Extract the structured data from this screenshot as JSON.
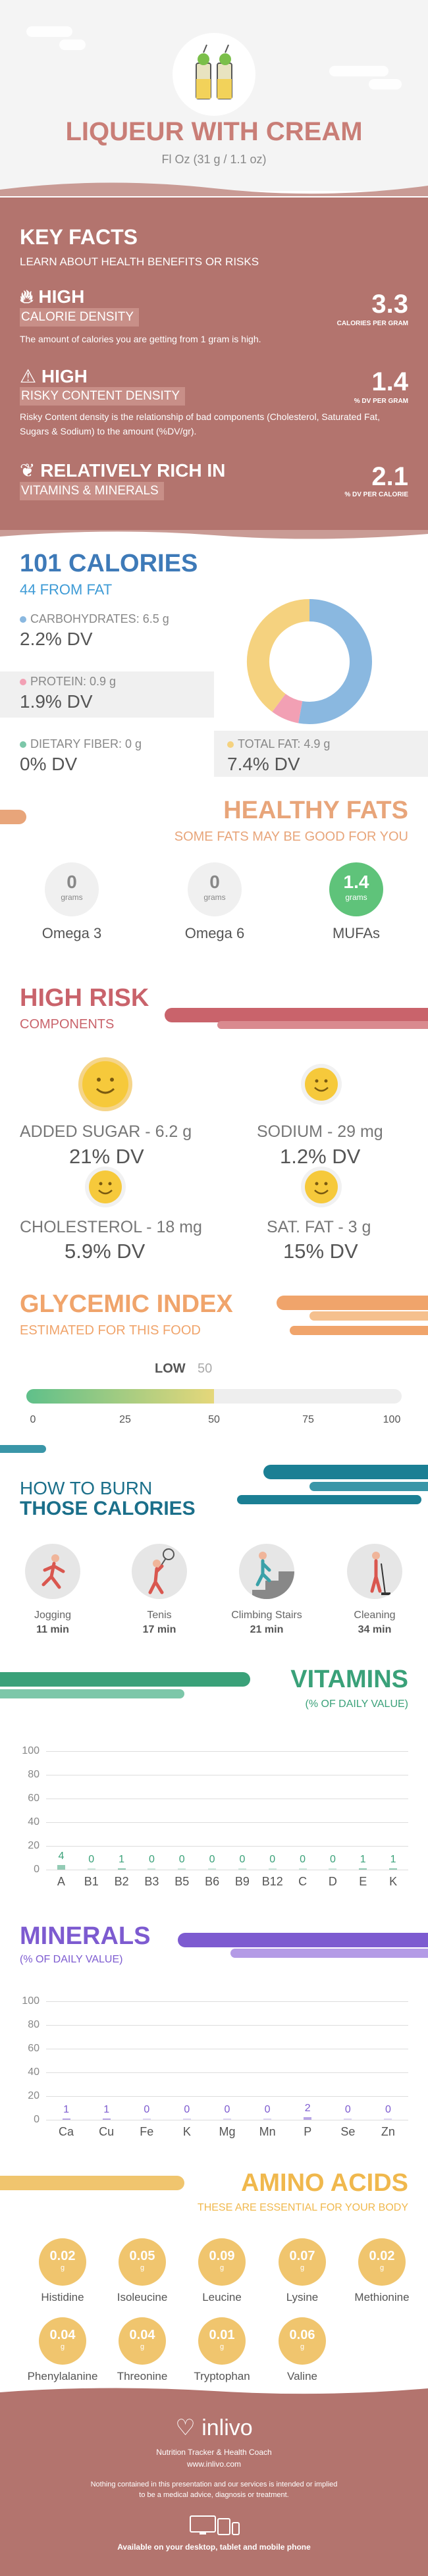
{
  "header": {
    "title": "LIQUEUR WITH CREAM",
    "subtitle": "Fl Oz (31 g / 1.1 oz)"
  },
  "key_facts": {
    "title": "KEY FACTS",
    "subtitle": "LEARN ABOUT HEALTH BENEFITS OR RISKS",
    "facts": [
      {
        "level": "HIGH",
        "label": "CALORIE DENSITY",
        "desc": "The amount of calories you are getting from 1 gram is high.",
        "value": "3.3",
        "unit": "CALORIES PER GRAM"
      },
      {
        "level": "HIGH",
        "label": "RISKY CONTENT DENSITY",
        "desc": "Risky Content density is the relationship of bad components (Cholesterol, Saturated Fat, Sugars & Sodium) to the amount (%DV/gr).",
        "value": "1.4",
        "unit": "% DV PER GRAM"
      },
      {
        "level": "RELATIVELY RICH IN",
        "label": "VITAMINS & MINERALS",
        "desc": "",
        "value": "2.1",
        "unit": "% DV PER CALORIE"
      }
    ]
  },
  "calories": {
    "title": "101 CALORIES",
    "subtitle": "44 FROM FAT",
    "macros": [
      {
        "label": "CARBOHYDRATES: 6.5 g",
        "dv": "2.2% DV",
        "color": "#8ab8e0"
      },
      {
        "label": "PROTEIN: 0.9 g",
        "dv": "1.9% DV",
        "color": "#f2a0b4"
      },
      {
        "label": "DIETARY FIBER: 0 g",
        "dv": "0% DV",
        "color": "#7cc7a9"
      },
      {
        "label": "TOTAL FAT: 4.9 g",
        "dv": "7.4% DV",
        "color": "#f5d27f"
      }
    ],
    "donut": [
      {
        "name": "CARBOHYDRATES",
        "value": 6.5,
        "color": "#8ab8e0"
      },
      {
        "name": "PROTEIN",
        "value": 0.9,
        "color": "#f2a0b4"
      },
      {
        "name": "TOTAL FAT",
        "value": 4.9,
        "color": "#f5d27f"
      }
    ]
  },
  "healthy_fats": {
    "title": "HEALTHY FATS",
    "subtitle": "SOME FATS MAY BE GOOD FOR YOU",
    "items": [
      {
        "name": "Omega 3",
        "value": "0",
        "unit": "grams"
      },
      {
        "name": "Omega 6",
        "value": "0",
        "unit": "grams"
      },
      {
        "name": "MUFAs",
        "value": "1.4",
        "unit": "grams"
      }
    ]
  },
  "high_risk": {
    "title": "HIGH RISK",
    "subtitle": "COMPONENTS",
    "items": [
      {
        "label": "ADDED SUGAR - 6.2 g",
        "dv": "21% DV"
      },
      {
        "label": "SODIUM - 29 mg",
        "dv": "1.2% DV"
      },
      {
        "label": "CHOLESTEROL - 18 mg",
        "dv": "5.9% DV"
      },
      {
        "label": "SAT. FAT - 3 g",
        "dv": "15% DV"
      }
    ]
  },
  "glycemic": {
    "title": "GLYCEMIC INDEX",
    "subtitle": "ESTIMATED FOR THIS FOOD",
    "level": "LOW",
    "value": 50,
    "value_text": "50",
    "ticks": [
      "0",
      "25",
      "50",
      "75",
      "100"
    ]
  },
  "burn": {
    "title_1": "HOW TO BURN",
    "title_2": "THOSE CALORIES",
    "activities": [
      {
        "name": "Jogging",
        "minutes": "11 min",
        "icon": "jogging-icon"
      },
      {
        "name": "Tenis",
        "minutes": "17 min",
        "icon": "tennis-icon"
      },
      {
        "name": "Climbing Stairs",
        "minutes": "21 min",
        "icon": "stairs-icon"
      },
      {
        "name": "Cleaning",
        "minutes": "34 min",
        "icon": "cleaning-icon"
      }
    ]
  },
  "vitamins": {
    "title": "VITAMINS",
    "subtitle": "(% OF DAILY VALUE)",
    "color": "#3aa179"
  },
  "minerals": {
    "title": "MINERALS",
    "subtitle": "(% OF DAILY VALUE)",
    "color": "#7d5bd0"
  },
  "chart_data": [
    {
      "type": "bar",
      "title": "VITAMINS",
      "ylabel": "(% OF DAILY VALUE)",
      "categories": [
        "A",
        "B1",
        "B2",
        "B3",
        "B5",
        "B6",
        "B9",
        "B12",
        "C",
        "D",
        "E",
        "K"
      ],
      "values": [
        4,
        0,
        1,
        0,
        0,
        0,
        0,
        0,
        0,
        0,
        1,
        1
      ],
      "value_labels": [
        "4",
        "0",
        "1",
        "0",
        "0",
        "0",
        "0",
        "0",
        "0",
        "0",
        "1",
        "1"
      ],
      "ylim": [
        0,
        100
      ],
      "yticks": [
        "0",
        "20",
        "40",
        "60",
        "80",
        "100"
      ],
      "grid": true
    },
    {
      "type": "bar",
      "title": "MINERALS",
      "ylabel": "(% OF DAILY VALUE)",
      "categories": [
        "Ca",
        "Cu",
        "Fe",
        "K",
        "Mg",
        "Mn",
        "P",
        "Se",
        "Zn"
      ],
      "values": [
        1,
        1,
        0,
        0,
        0,
        0,
        2,
        0,
        0
      ],
      "value_labels": [
        "1",
        "1",
        "0",
        "0",
        "0",
        "0",
        "2",
        "0",
        "0"
      ],
      "ylim": [
        0,
        100
      ],
      "yticks": [
        "0",
        "20",
        "40",
        "60",
        "80",
        "100"
      ],
      "grid": true
    }
  ],
  "amino": {
    "title": "AMINO ACIDS",
    "subtitle": "THESE ARE ESSENTIAL FOR YOUR BODY",
    "unit": "g",
    "items": [
      {
        "name": "Histidine",
        "value": "0.02"
      },
      {
        "name": "Isoleucine",
        "value": "0.05"
      },
      {
        "name": "Leucine",
        "value": "0.09"
      },
      {
        "name": "Lysine",
        "value": "0.07"
      },
      {
        "name": "Methionine",
        "value": "0.02"
      },
      {
        "name": "Phenylalanine",
        "value": "0.04"
      },
      {
        "name": "Threonine",
        "value": "0.04"
      },
      {
        "name": "Tryptophan",
        "value": "0.01"
      },
      {
        "name": "Valine",
        "value": "0.06"
      }
    ]
  },
  "footer": {
    "brand": "inlivo",
    "tagline": "Nutrition Tracker & Health Coach",
    "url": "www.inlivo.com",
    "disclaimer_1": "Nothing contained in this presentation and our services is intended or implied",
    "disclaimer_2": "to be a medical advice, diagnosis or treatment.",
    "available": "Available on your desktop, tablet and mobile phone"
  }
}
